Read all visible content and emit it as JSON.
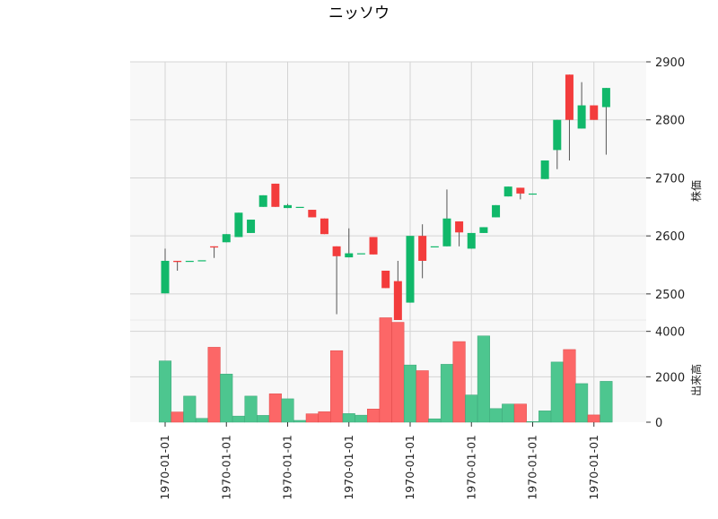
{
  "chart_data": {
    "type": "candlestick",
    "title": "ニッソウ",
    "panels": [
      {
        "name": "price",
        "ylabel": "株価",
        "ylim": [
          2455,
          2900
        ],
        "yticks": [
          2500,
          2600,
          2700,
          2800,
          2900
        ]
      },
      {
        "name": "volume",
        "ylabel": "出来高",
        "ylim": [
          0,
          4500
        ],
        "yticks": [
          0,
          2000,
          4000
        ]
      }
    ],
    "x_tick_labels": [
      "1970-01-01",
      "1970-01-01",
      "1970-01-01",
      "1970-01-01",
      "1970-01-01",
      "1970-01-01",
      "1970-01-01",
      "1970-01-01"
    ],
    "colors": {
      "up": "#11b86a",
      "down": "#f33c3c",
      "up_volume": "#4dc68f",
      "down_volume": "#fc6767",
      "wick": "#555555"
    },
    "grid": true,
    "candles": [
      {
        "open": 2501,
        "high": 2578,
        "low": 2501,
        "close": 2557,
        "volume": 2700
      },
      {
        "open": 2557,
        "high": 2557,
        "low": 2540,
        "close": 2555,
        "volume": 450
      },
      {
        "open": 2557,
        "high": 2557,
        "low": 2557,
        "close": 2557,
        "volume": 1150
      },
      {
        "open": 2558,
        "high": 2558,
        "low": 2558,
        "close": 2558,
        "volume": 170
      },
      {
        "open": 2582,
        "high": 2582,
        "low": 2562,
        "close": 2580,
        "volume": 3300
      },
      {
        "open": 2589,
        "high": 2603,
        "low": 2589,
        "close": 2603,
        "volume": 2120
      },
      {
        "open": 2598,
        "high": 2640,
        "low": 2598,
        "close": 2640,
        "volume": 270
      },
      {
        "open": 2605,
        "high": 2628,
        "low": 2605,
        "close": 2628,
        "volume": 1150
      },
      {
        "open": 2650,
        "high": 2670,
        "low": 2650,
        "close": 2670,
        "volume": 300
      },
      {
        "open": 2690,
        "high": 2690,
        "low": 2650,
        "close": 2650,
        "volume": 1250
      },
      {
        "open": 2648,
        "high": 2655,
        "low": 2648,
        "close": 2653,
        "volume": 1030
      },
      {
        "open": 2650,
        "high": 2650,
        "low": 2650,
        "close": 2650,
        "volume": 80
      },
      {
        "open": 2645,
        "high": 2645,
        "low": 2632,
        "close": 2632,
        "volume": 370
      },
      {
        "open": 2630,
        "high": 2630,
        "low": 2603,
        "close": 2603,
        "volume": 460
      },
      {
        "open": 2582,
        "high": 2582,
        "low": 2465,
        "close": 2565,
        "volume": 3150
      },
      {
        "open": 2563,
        "high": 2613,
        "low": 2563,
        "close": 2570,
        "volume": 380
      },
      {
        "open": 2570,
        "high": 2570,
        "low": 2570,
        "close": 2570,
        "volume": 310
      },
      {
        "open": 2598,
        "high": 2598,
        "low": 2568,
        "close": 2568,
        "volume": 580
      },
      {
        "open": 2540,
        "high": 2540,
        "low": 2510,
        "close": 2510,
        "volume": 4600
      },
      {
        "open": 2522,
        "high": 2557,
        "low": 2455,
        "close": 2455,
        "volume": 4400
      },
      {
        "open": 2485,
        "high": 2600,
        "low": 2485,
        "close": 2600,
        "volume": 2520
      },
      {
        "open": 2600,
        "high": 2620,
        "low": 2527,
        "close": 2557,
        "volume": 2270
      },
      {
        "open": 2582,
        "high": 2582,
        "low": 2582,
        "close": 2582,
        "volume": 150
      },
      {
        "open": 2582,
        "high": 2680,
        "low": 2582,
        "close": 2630,
        "volume": 2550
      },
      {
        "open": 2625,
        "high": 2625,
        "low": 2582,
        "close": 2606,
        "volume": 3550
      },
      {
        "open": 2578,
        "high": 2605,
        "low": 2578,
        "close": 2605,
        "volume": 1200
      },
      {
        "open": 2605,
        "high": 2615,
        "low": 2605,
        "close": 2615,
        "volume": 3800
      },
      {
        "open": 2632,
        "high": 2653,
        "low": 2632,
        "close": 2653,
        "volume": 600
      },
      {
        "open": 2668,
        "high": 2685,
        "low": 2668,
        "close": 2685,
        "volume": 800
      },
      {
        "open": 2683,
        "high": 2683,
        "low": 2663,
        "close": 2673,
        "volume": 800
      },
      {
        "open": 2673,
        "high": 2673,
        "low": 2673,
        "close": 2673,
        "volume": 30
      },
      {
        "open": 2698,
        "high": 2730,
        "low": 2698,
        "close": 2730,
        "volume": 500
      },
      {
        "open": 2748,
        "high": 2800,
        "low": 2715,
        "close": 2800,
        "volume": 2650
      },
      {
        "open": 2878,
        "high": 2878,
        "low": 2730,
        "close": 2800,
        "volume": 3200
      },
      {
        "open": 2785,
        "high": 2865,
        "low": 2785,
        "close": 2825,
        "volume": 1700
      },
      {
        "open": 2825,
        "high": 2825,
        "low": 2800,
        "close": 2800,
        "volume": 320
      },
      {
        "open": 2822,
        "high": 2855,
        "low": 2740,
        "close": 2855,
        "volume": 1800
      }
    ]
  }
}
